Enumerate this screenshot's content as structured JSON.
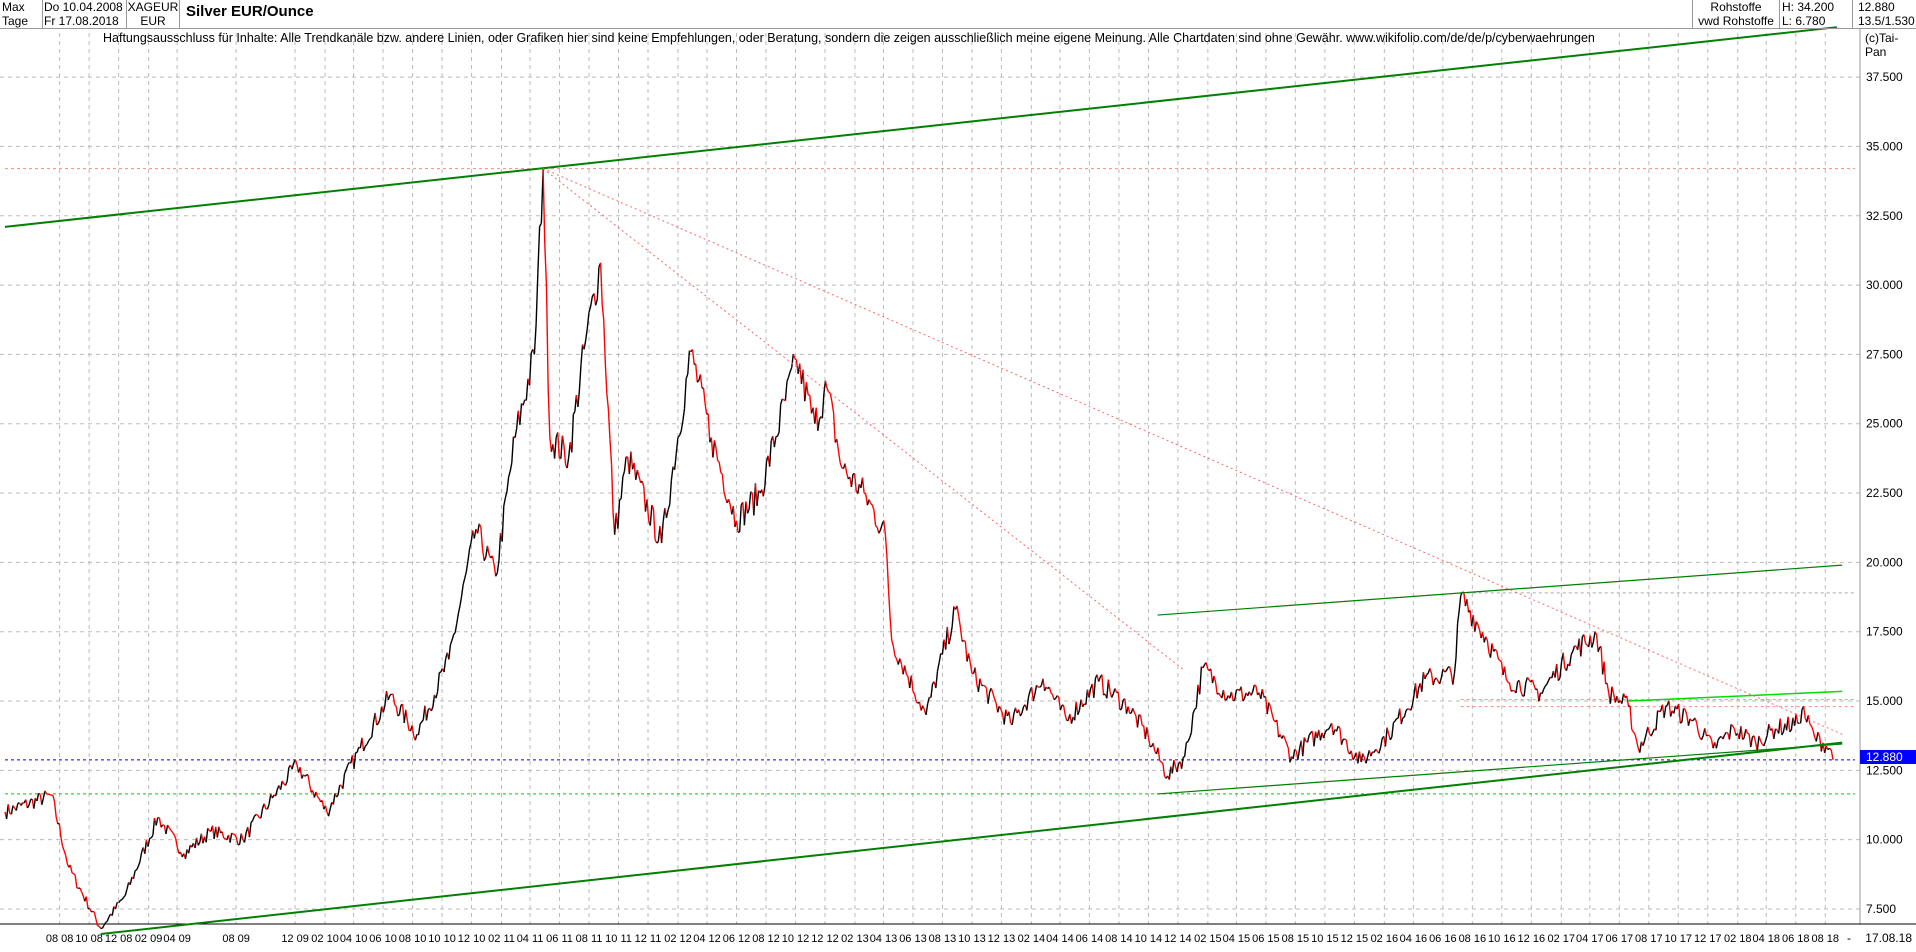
{
  "header": {
    "range": "Max",
    "period": "Tage",
    "date_from": "Do 10.04.2008",
    "date_to": "Fr 17.08.2018",
    "symbol": "XAGEUR",
    "currency": "EUR",
    "title": "Silver EUR/Ounce",
    "source1": "Rohstoffe",
    "source2": "vwd Rohstoffe",
    "high": "H: 34.200",
    "low": "L: 6.780",
    "last": "12.880",
    "change": "13.5/1.530",
    "copyright": "(c)Tai-Pan"
  },
  "disclaimer": "Haftungsausschluss für Inhalte: Alle Trendkanäle bzw. andere Linien, oder Grafiken hier sind keine Empfehlungen, oder Beratung, sondern die zeigen ausschließlich meine eigene Meinung. Alle Chartdaten sind ohne Gewähr.  www.wikifolio.com/de/de/p/cyberwaehrungen",
  "chart_data": {
    "type": "line",
    "title": "Silver EUR/Ounce",
    "xlabel": "",
    "ylabel": "",
    "xlim": [
      "2008-04-10",
      "2018-08-17"
    ],
    "ylim": [
      6.5,
      39.5
    ],
    "grid": true,
    "log_scale": false,
    "yticks": [
      "7.500",
      "10.000",
      "12.500",
      "15.000",
      "17.500",
      "20.000",
      "22.500",
      "25.000",
      "27.500",
      "30.000",
      "32.500",
      "35.000",
      "37.500"
    ],
    "xticks": [
      [
        "2008-08",
        "08 08"
      ],
      [
        "2008-10",
        "10 08"
      ],
      [
        "2008-12",
        "12 08"
      ],
      [
        "2009-02",
        "02 09"
      ],
      [
        "2009-04",
        "04 09"
      ],
      [
        "2009-08",
        "08 09"
      ],
      [
        "2009-12",
        "12 09"
      ],
      [
        "2010-02",
        "02 10"
      ],
      [
        "2010-04",
        "04 10"
      ],
      [
        "2010-06",
        "06 10"
      ],
      [
        "2010-08",
        "08 10"
      ],
      [
        "2010-10",
        "10 10"
      ],
      [
        "2010-12",
        "12 10"
      ],
      [
        "2011-02",
        "02 11"
      ],
      [
        "2011-04",
        "04 11"
      ],
      [
        "2011-06",
        "06 11"
      ],
      [
        "2011-08",
        "08 11"
      ],
      [
        "2011-10",
        "10 11"
      ],
      [
        "2011-12",
        "12 11"
      ],
      [
        "2012-02",
        "02 12"
      ],
      [
        "2012-04",
        "04 12"
      ],
      [
        "2012-06",
        "06 12"
      ],
      [
        "2012-08",
        "08 12"
      ],
      [
        "2012-10",
        "10 12"
      ],
      [
        "2012-12",
        "12 12"
      ],
      [
        "2013-02",
        "02 13"
      ],
      [
        "2013-04",
        "04 13"
      ],
      [
        "2013-06",
        "06 13"
      ],
      [
        "2013-08",
        "08 13"
      ],
      [
        "2013-10",
        "10 13"
      ],
      [
        "2013-12",
        "12 13"
      ],
      [
        "2014-02",
        "02 14"
      ],
      [
        "2014-04",
        "04 14"
      ],
      [
        "2014-06",
        "06 14"
      ],
      [
        "2014-08",
        "08 14"
      ],
      [
        "2014-10",
        "10 14"
      ],
      [
        "2014-12",
        "12 14"
      ],
      [
        "2015-02",
        "02 15"
      ],
      [
        "2015-04",
        "04 15"
      ],
      [
        "2015-06",
        "06 15"
      ],
      [
        "2015-08",
        "08 15"
      ],
      [
        "2015-10",
        "10 15"
      ],
      [
        "2015-12",
        "12 15"
      ],
      [
        "2016-02",
        "02 16"
      ],
      [
        "2016-04",
        "04 16"
      ],
      [
        "2016-06",
        "06 16"
      ],
      [
        "2016-08",
        "08 16"
      ],
      [
        "2016-10",
        "10 16"
      ],
      [
        "2016-12",
        "12 16"
      ],
      [
        "2017-02",
        "02 17"
      ],
      [
        "2017-04",
        "04 17"
      ],
      [
        "2017-06",
        "06 17"
      ],
      [
        "2017-08",
        "08 17"
      ],
      [
        "2017-10",
        "10 17"
      ],
      [
        "2017-12",
        "12 17"
      ],
      [
        "2018-02",
        "02 18"
      ],
      [
        "2018-04",
        "04 18"
      ],
      [
        "2018-06",
        "06 18"
      ],
      [
        "2018-08",
        "08 18"
      ]
    ],
    "last_date_label": "17.08.18",
    "last_value_label": "12.880",
    "price": [
      [
        "2008-04-10",
        11.0
      ],
      [
        "2008-07-15",
        11.6
      ],
      [
        "2008-08-20",
        9.0
      ],
      [
        "2008-10-25",
        6.8
      ],
      [
        "2008-12-15",
        8.0
      ],
      [
        "2009-02-20",
        10.8
      ],
      [
        "2009-04-15",
        9.5
      ],
      [
        "2009-06-10",
        10.3
      ],
      [
        "2009-08-15",
        10.0
      ],
      [
        "2009-10-15",
        11.5
      ],
      [
        "2009-12-05",
        12.7
      ],
      [
        "2010-02-05",
        11.0
      ],
      [
        "2010-04-15",
        13.3
      ],
      [
        "2010-06-15",
        15.2
      ],
      [
        "2010-08-10",
        13.8
      ],
      [
        "2010-10-15",
        16.5
      ],
      [
        "2010-12-10",
        21.2
      ],
      [
        "2011-01-20",
        19.5
      ],
      [
        "2011-03-01",
        24.5
      ],
      [
        "2011-04-10",
        27.5
      ],
      [
        "2011-04-28",
        34.2
      ],
      [
        "2011-05-12",
        24.5
      ],
      [
        "2011-06-20",
        23.8
      ],
      [
        "2011-07-25",
        28.0
      ],
      [
        "2011-08-25",
        30.8
      ],
      [
        "2011-09-23",
        21.0
      ],
      [
        "2011-10-20",
        23.8
      ],
      [
        "2011-12-29",
        20.7
      ],
      [
        "2012-02-28",
        27.6
      ],
      [
        "2012-04-10",
        24.5
      ],
      [
        "2012-06-01",
        21.5
      ],
      [
        "2012-07-20",
        22.5
      ],
      [
        "2012-10-03",
        27.3
      ],
      [
        "2012-11-10",
        25.0
      ],
      [
        "2012-12-05",
        26.3
      ],
      [
        "2013-01-05",
        23.4
      ],
      [
        "2013-02-20",
        22.5
      ],
      [
        "2013-04-05",
        21.0
      ],
      [
        "2013-04-18",
        17.2
      ],
      [
        "2013-06-28",
        14.5
      ],
      [
        "2013-08-28",
        18.3
      ],
      [
        "2013-10-01",
        16.0
      ],
      [
        "2013-12-20",
        14.2
      ],
      [
        "2014-02-25",
        15.8
      ],
      [
        "2014-04-15",
        14.3
      ],
      [
        "2014-06-20",
        15.7
      ],
      [
        "2014-08-20",
        14.8
      ],
      [
        "2014-10-01",
        13.7
      ],
      [
        "2014-11-10",
        12.3
      ],
      [
        "2014-12-15",
        13.0
      ],
      [
        "2015-01-22",
        16.2
      ],
      [
        "2015-03-15",
        15.2
      ],
      [
        "2015-05-18",
        15.3
      ],
      [
        "2015-07-24",
        13.0
      ],
      [
        "2015-10-15",
        14.2
      ],
      [
        "2015-12-15",
        12.8
      ],
      [
        "2016-02-10",
        13.8
      ],
      [
        "2016-04-25",
        15.8
      ],
      [
        "2016-06-25",
        16.0
      ],
      [
        "2016-07-08",
        18.8
      ],
      [
        "2016-09-01",
        17.2
      ],
      [
        "2016-10-10",
        15.8
      ],
      [
        "2016-12-20",
        15.3
      ],
      [
        "2017-02-25",
        16.8
      ],
      [
        "2017-04-15",
        17.4
      ],
      [
        "2017-05-10",
        15.3
      ],
      [
        "2017-06-20",
        14.8
      ],
      [
        "2017-07-10",
        13.3
      ],
      [
        "2017-09-05",
        14.8
      ],
      [
        "2017-11-01",
        14.3
      ],
      [
        "2017-12-12",
        13.3
      ],
      [
        "2018-01-25",
        14.0
      ],
      [
        "2018-03-10",
        13.5
      ],
      [
        "2018-04-20",
        14.0
      ],
      [
        "2018-06-05",
        14.2
      ],
      [
        "2018-06-14",
        14.7
      ],
      [
        "2018-07-10",
        13.7
      ],
      [
        "2018-08-10",
        13.3
      ],
      [
        "2018-08-17",
        12.88
      ]
    ],
    "trendlines": [
      {
        "color": "#008000",
        "width": 2,
        "from": [
          "2008-04-10",
          32.1
        ],
        "to": [
          "2018-08-25",
          39.3
        ]
      },
      {
        "color": "#008000",
        "width": 2,
        "from": [
          "2008-10-25",
          6.6
        ],
        "to": [
          "2018-09-05",
          13.5
        ]
      },
      {
        "color": "#008000",
        "width": 1.2,
        "from": [
          "2014-10-20",
          18.1
        ],
        "to": [
          "2018-09-05",
          19.9
        ]
      },
      {
        "color": "#008000",
        "width": 1.2,
        "from": [
          "2014-10-20",
          11.65
        ],
        "to": [
          "2018-09-05",
          13.45
        ]
      },
      {
        "color": "#00dd00",
        "width": 1.5,
        "from": [
          "2017-06-20",
          15.0
        ],
        "to": [
          "2018-09-05",
          15.35
        ]
      },
      {
        "color": "#ff6666",
        "width": 1,
        "dash": "2,3",
        "from": [
          "2011-04-28",
          34.2
        ],
        "to": [
          "2018-09-05",
          13.8
        ]
      },
      {
        "color": "#ff6666",
        "width": 1,
        "dash": "2,3",
        "from": [
          "2011-04-28",
          34.2
        ],
        "to": [
          "2014-12-15",
          16.1
        ]
      }
    ],
    "hlines": [
      {
        "color": "#ff8888",
        "value": 34.2,
        "from": "2008-04-10"
      },
      {
        "color": "#aaaaaa",
        "value": 18.9,
        "from": "2016-07-08"
      },
      {
        "color": "#ff8888",
        "value": 15.05,
        "from": "2016-07-08"
      },
      {
        "color": "#ff8888",
        "value": 14.8,
        "from": "2016-07-08"
      },
      {
        "color": "#0000ff",
        "value": 12.88,
        "from": "2008-04-10"
      },
      {
        "color": "#00cc00",
        "value": 11.65,
        "from": "2008-04-10"
      }
    ]
  }
}
